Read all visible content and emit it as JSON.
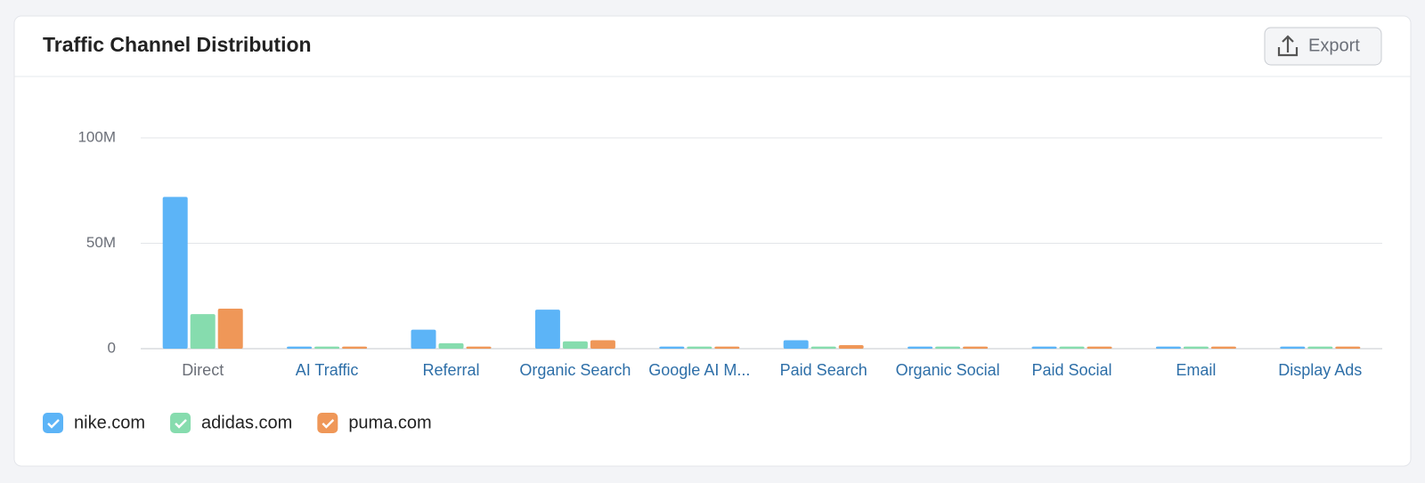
{
  "chart_data": {
    "type": "bar",
    "title": "Traffic Channel Distribution",
    "categories": [
      "Direct",
      "AI Traffic",
      "Referral",
      "Organic Search",
      "Google AI M...",
      "Paid Search",
      "Organic Social",
      "Paid Social",
      "Email",
      "Display Ads"
    ],
    "series": [
      {
        "name": "nike.com",
        "color": "#5cb4f7",
        "values": [
          72000000,
          1000000,
          9000000,
          18500000,
          1000000,
          4000000,
          1000000,
          1000000,
          1000000,
          1000000
        ]
      },
      {
        "name": "adidas.com",
        "color": "#86dcae",
        "values": [
          16400000,
          1000000,
          2600000,
          3500000,
          1000000,
          1000000,
          1000000,
          1000000,
          1000000,
          1000000
        ]
      },
      {
        "name": "puma.com",
        "color": "#ef9758",
        "values": [
          19000000,
          1000000,
          1000000,
          4000000,
          1000000,
          1700000,
          1000000,
          1000000,
          1000000,
          1000000
        ]
      }
    ],
    "ylim": [
      0,
      100000000
    ],
    "yticks": [
      {
        "value": 0,
        "label": "0"
      },
      {
        "value": 50000000,
        "label": "50M"
      },
      {
        "value": 100000000,
        "label": "100M"
      }
    ],
    "grid": true
  },
  "toolbar": {
    "export": "Export"
  }
}
